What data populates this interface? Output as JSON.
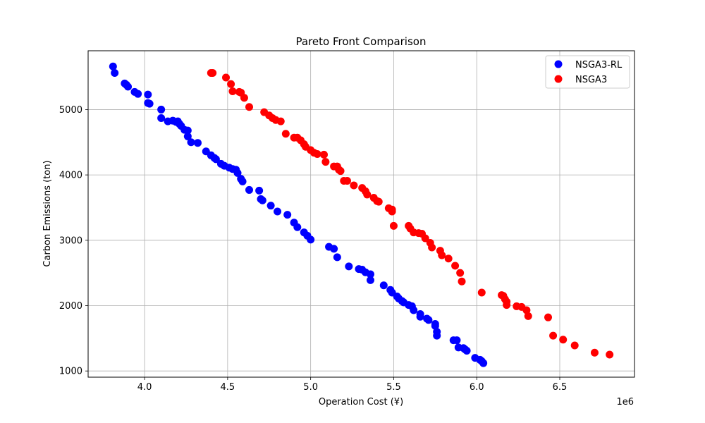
{
  "chart_data": {
    "type": "scatter",
    "title": "Pareto Front Comparison",
    "xlabel": "Operation Cost (¥)",
    "ylabel": "Carbon Emissions (ton)",
    "x_offset_label": "1e6",
    "xlim": [
      3.66,
      6.95
    ],
    "ylim": [
      905,
      5900
    ],
    "xticks": [
      4.0,
      4.5,
      5.0,
      5.5,
      6.0,
      6.5
    ],
    "xtick_labels": [
      "4.0",
      "4.5",
      "5.0",
      "5.5",
      "6.0",
      "6.5"
    ],
    "yticks": [
      1000,
      2000,
      3000,
      4000,
      5000
    ],
    "ytick_labels": [
      "1000",
      "2000",
      "3000",
      "4000",
      "5000"
    ],
    "grid": true,
    "legend_position": "upper right",
    "series": [
      {
        "name": "NSGA3-RL",
        "color": "#0000ff",
        "points": [
          [
            3.81,
            5660
          ],
          [
            3.82,
            5560
          ],
          [
            3.88,
            5400
          ],
          [
            3.89,
            5380
          ],
          [
            3.9,
            5350
          ],
          [
            3.94,
            5270
          ],
          [
            3.96,
            5240
          ],
          [
            4.02,
            5230
          ],
          [
            4.02,
            5100
          ],
          [
            4.03,
            5090
          ],
          [
            4.1,
            5000
          ],
          [
            4.1,
            4870
          ],
          [
            4.14,
            4820
          ],
          [
            4.17,
            4830
          ],
          [
            4.19,
            4810
          ],
          [
            4.2,
            4820
          ],
          [
            4.21,
            4780
          ],
          [
            4.22,
            4750
          ],
          [
            4.24,
            4690
          ],
          [
            4.26,
            4680
          ],
          [
            4.26,
            4590
          ],
          [
            4.28,
            4500
          ],
          [
            4.32,
            4490
          ],
          [
            4.37,
            4360
          ],
          [
            4.4,
            4300
          ],
          [
            4.42,
            4260
          ],
          [
            4.43,
            4240
          ],
          [
            4.46,
            4170
          ],
          [
            4.48,
            4140
          ],
          [
            4.51,
            4110
          ],
          [
            4.53,
            4090
          ],
          [
            4.55,
            4080
          ],
          [
            4.56,
            4030
          ],
          [
            4.58,
            3940
          ],
          [
            4.59,
            3900
          ],
          [
            4.63,
            3770
          ],
          [
            4.69,
            3760
          ],
          [
            4.7,
            3630
          ],
          [
            4.71,
            3610
          ],
          [
            4.76,
            3530
          ],
          [
            4.8,
            3440
          ],
          [
            4.86,
            3390
          ],
          [
            4.9,
            3270
          ],
          [
            4.92,
            3200
          ],
          [
            4.96,
            3120
          ],
          [
            4.98,
            3070
          ],
          [
            5.0,
            3010
          ],
          [
            5.11,
            2900
          ],
          [
            5.14,
            2870
          ],
          [
            5.16,
            2740
          ],
          [
            5.23,
            2600
          ],
          [
            5.29,
            2560
          ],
          [
            5.31,
            2550
          ],
          [
            5.33,
            2510
          ],
          [
            5.36,
            2480
          ],
          [
            5.36,
            2390
          ],
          [
            5.44,
            2310
          ],
          [
            5.48,
            2240
          ],
          [
            5.49,
            2200
          ],
          [
            5.52,
            2140
          ],
          [
            5.53,
            2110
          ],
          [
            5.55,
            2070
          ],
          [
            5.56,
            2050
          ],
          [
            5.59,
            2010
          ],
          [
            5.61,
            1990
          ],
          [
            5.62,
            1930
          ],
          [
            5.66,
            1870
          ],
          [
            5.66,
            1830
          ],
          [
            5.7,
            1800
          ],
          [
            5.71,
            1780
          ],
          [
            5.75,
            1720
          ],
          [
            5.75,
            1690
          ],
          [
            5.76,
            1600
          ],
          [
            5.76,
            1540
          ],
          [
            5.86,
            1470
          ],
          [
            5.88,
            1470
          ],
          [
            5.89,
            1360
          ],
          [
            5.92,
            1350
          ],
          [
            5.93,
            1330
          ],
          [
            5.94,
            1310
          ],
          [
            5.99,
            1200
          ],
          [
            6.02,
            1170
          ],
          [
            6.03,
            1150
          ],
          [
            6.04,
            1120
          ]
        ]
      },
      {
        "name": "NSGA3",
        "color": "#ff0000",
        "points": [
          [
            4.4,
            5560
          ],
          [
            4.41,
            5560
          ],
          [
            4.49,
            5490
          ],
          [
            4.52,
            5390
          ],
          [
            4.53,
            5280
          ],
          [
            4.57,
            5270
          ],
          [
            4.58,
            5260
          ],
          [
            4.6,
            5180
          ],
          [
            4.63,
            5040
          ],
          [
            4.72,
            4960
          ],
          [
            4.75,
            4910
          ],
          [
            4.77,
            4870
          ],
          [
            4.79,
            4840
          ],
          [
            4.82,
            4820
          ],
          [
            4.85,
            4630
          ],
          [
            4.9,
            4570
          ],
          [
            4.92,
            4570
          ],
          [
            4.94,
            4530
          ],
          [
            4.96,
            4470
          ],
          [
            4.97,
            4430
          ],
          [
            5.0,
            4380
          ],
          [
            5.02,
            4340
          ],
          [
            5.04,
            4320
          ],
          [
            5.08,
            4310
          ],
          [
            5.09,
            4200
          ],
          [
            5.14,
            4130
          ],
          [
            5.16,
            4130
          ],
          [
            5.17,
            4080
          ],
          [
            5.18,
            4060
          ],
          [
            5.2,
            3910
          ],
          [
            5.22,
            3910
          ],
          [
            5.26,
            3840
          ],
          [
            5.31,
            3800
          ],
          [
            5.33,
            3750
          ],
          [
            5.34,
            3700
          ],
          [
            5.38,
            3650
          ],
          [
            5.4,
            3600
          ],
          [
            5.41,
            3590
          ],
          [
            5.47,
            3490
          ],
          [
            5.49,
            3470
          ],
          [
            5.49,
            3440
          ],
          [
            5.5,
            3220
          ],
          [
            5.59,
            3220
          ],
          [
            5.6,
            3180
          ],
          [
            5.62,
            3120
          ],
          [
            5.65,
            3110
          ],
          [
            5.67,
            3100
          ],
          [
            5.69,
            3030
          ],
          [
            5.72,
            2960
          ],
          [
            5.73,
            2890
          ],
          [
            5.78,
            2840
          ],
          [
            5.79,
            2770
          ],
          [
            5.83,
            2720
          ],
          [
            5.87,
            2610
          ],
          [
            5.9,
            2500
          ],
          [
            5.91,
            2370
          ],
          [
            6.03,
            2200
          ],
          [
            6.15,
            2160
          ],
          [
            6.16,
            2150
          ],
          [
            6.17,
            2100
          ],
          [
            6.18,
            2060
          ],
          [
            6.18,
            2010
          ],
          [
            6.24,
            1990
          ],
          [
            6.27,
            1980
          ],
          [
            6.3,
            1930
          ],
          [
            6.31,
            1840
          ],
          [
            6.43,
            1820
          ],
          [
            6.46,
            1540
          ],
          [
            6.52,
            1480
          ],
          [
            6.59,
            1390
          ],
          [
            6.71,
            1280
          ],
          [
            6.8,
            1250
          ]
        ]
      }
    ]
  }
}
